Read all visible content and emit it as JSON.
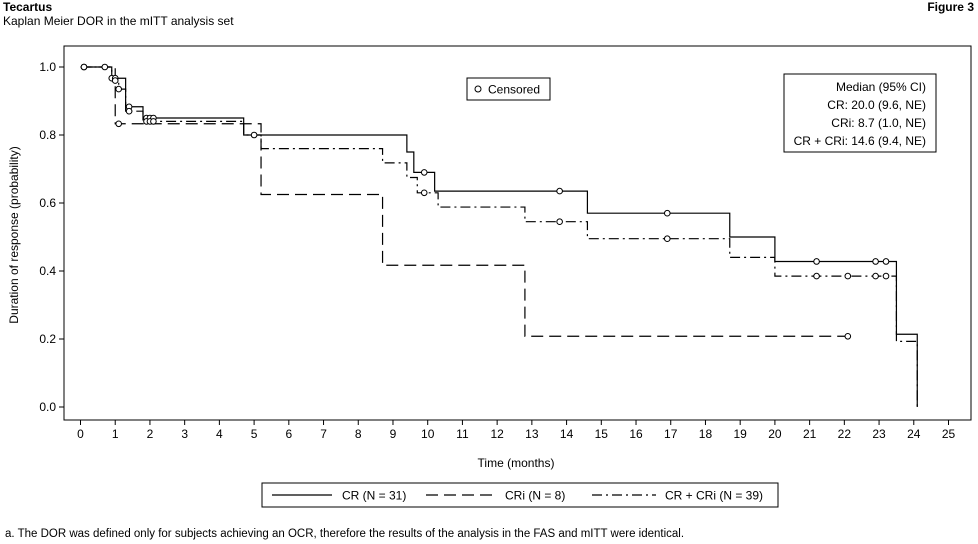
{
  "header": {
    "title": "Tecartus",
    "subtitle": "Kaplan Meier DOR in the mITT analysis set",
    "figure_label": "Figure 3"
  },
  "footnote": "a. The DOR was defined only for subjects achieving an OCR, therefore the results of the analysis in the FAS and mITT were identical.",
  "chart_data": {
    "type": "line",
    "title": "",
    "xlabel": "Time (months)",
    "ylabel": "Duration of response (probability)",
    "xlim": [
      0,
      25
    ],
    "ylim": [
      0,
      1.0
    ],
    "xticks": [
      0,
      1,
      2,
      3,
      4,
      5,
      6,
      7,
      8,
      9,
      10,
      11,
      12,
      13,
      14,
      15,
      16,
      17,
      18,
      19,
      20,
      21,
      22,
      23,
      24,
      25
    ],
    "yticks": [
      0.0,
      0.2,
      0.4,
      0.6,
      0.8,
      1.0
    ],
    "ytick_labels": [
      "0.0",
      "0.2",
      "0.4",
      "0.6",
      "0.8",
      "1.0"
    ],
    "grid": false,
    "censored_legend": "Censored",
    "median_box": {
      "title": "Median (95% CI)",
      "lines": [
        "CR: 20.0 (9.6, NE)",
        "CRi: 8.7 (1.0, NE)",
        "CR + CRi: 14.6 (9.4, NE)"
      ]
    },
    "series": [
      {
        "name": "CR (N = 31)",
        "dash": "solid",
        "steps": [
          {
            "x": 0.0,
            "y": 1.0
          },
          {
            "x": 0.9,
            "y": 0.967
          },
          {
            "x": 1.3,
            "y": 0.883
          },
          {
            "x": 1.8,
            "y": 0.85
          },
          {
            "x": 4.7,
            "y": 0.8
          },
          {
            "x": 9.4,
            "y": 0.75
          },
          {
            "x": 9.6,
            "y": 0.69
          },
          {
            "x": 10.2,
            "y": 0.635
          },
          {
            "x": 14.6,
            "y": 0.57
          },
          {
            "x": 18.7,
            "y": 0.5
          },
          {
            "x": 20.0,
            "y": 0.428
          },
          {
            "x": 23.5,
            "y": 0.214
          },
          {
            "x": 24.1,
            "y": 0.0
          }
        ],
        "end_x": 24.1,
        "censored": [
          {
            "x": 0.1,
            "y": 1.0
          },
          {
            "x": 0.7,
            "y": 1.0
          },
          {
            "x": 0.9,
            "y": 0.967
          },
          {
            "x": 1.0,
            "y": 0.967
          },
          {
            "x": 1.4,
            "y": 0.883
          },
          {
            "x": 1.9,
            "y": 0.85
          },
          {
            "x": 2.0,
            "y": 0.85
          },
          {
            "x": 2.1,
            "y": 0.85
          },
          {
            "x": 5.0,
            "y": 0.8
          },
          {
            "x": 9.9,
            "y": 0.69
          },
          {
            "x": 13.8,
            "y": 0.635
          },
          {
            "x": 16.9,
            "y": 0.57
          },
          {
            "x": 21.2,
            "y": 0.428
          },
          {
            "x": 22.9,
            "y": 0.428
          },
          {
            "x": 23.2,
            "y": 0.428
          }
        ]
      },
      {
        "name": "CRi (N = 8)",
        "dash": "dashed",
        "steps": [
          {
            "x": 0.0,
            "y": 1.0
          },
          {
            "x": 1.0,
            "y": 0.833
          },
          {
            "x": 5.2,
            "y": 0.625
          },
          {
            "x": 8.7,
            "y": 0.417
          },
          {
            "x": 12.8,
            "y": 0.208
          }
        ],
        "end_x": 22.1,
        "censored": [
          {
            "x": 0.1,
            "y": 1.0
          },
          {
            "x": 1.1,
            "y": 0.833
          },
          {
            "x": 22.1,
            "y": 0.208
          }
        ]
      },
      {
        "name": "CR + CRi (N = 39)",
        "dash": "dashdot",
        "steps": [
          {
            "x": 0.0,
            "y": 1.0
          },
          {
            "x": 0.9,
            "y": 0.96
          },
          {
            "x": 1.1,
            "y": 0.935
          },
          {
            "x": 1.3,
            "y": 0.87
          },
          {
            "x": 1.8,
            "y": 0.84
          },
          {
            "x": 4.7,
            "y": 0.8
          },
          {
            "x": 5.2,
            "y": 0.76
          },
          {
            "x": 8.7,
            "y": 0.718
          },
          {
            "x": 9.4,
            "y": 0.675
          },
          {
            "x": 9.7,
            "y": 0.63
          },
          {
            "x": 10.3,
            "y": 0.588
          },
          {
            "x": 12.8,
            "y": 0.545
          },
          {
            "x": 14.6,
            "y": 0.495
          },
          {
            "x": 18.7,
            "y": 0.44
          },
          {
            "x": 20.0,
            "y": 0.385
          },
          {
            "x": 23.5,
            "y": 0.193
          },
          {
            "x": 24.1,
            "y": 0.0
          }
        ],
        "end_x": 24.1,
        "censored": [
          {
            "x": 1.0,
            "y": 0.96
          },
          {
            "x": 1.1,
            "y": 0.935
          },
          {
            "x": 1.4,
            "y": 0.87
          },
          {
            "x": 1.9,
            "y": 0.84
          },
          {
            "x": 2.0,
            "y": 0.84
          },
          {
            "x": 2.1,
            "y": 0.84
          },
          {
            "x": 9.9,
            "y": 0.63
          },
          {
            "x": 13.8,
            "y": 0.545
          },
          {
            "x": 16.9,
            "y": 0.495
          },
          {
            "x": 21.2,
            "y": 0.385
          },
          {
            "x": 22.1,
            "y": 0.385
          },
          {
            "x": 22.9,
            "y": 0.385
          },
          {
            "x": 23.2,
            "y": 0.385
          }
        ]
      }
    ]
  }
}
